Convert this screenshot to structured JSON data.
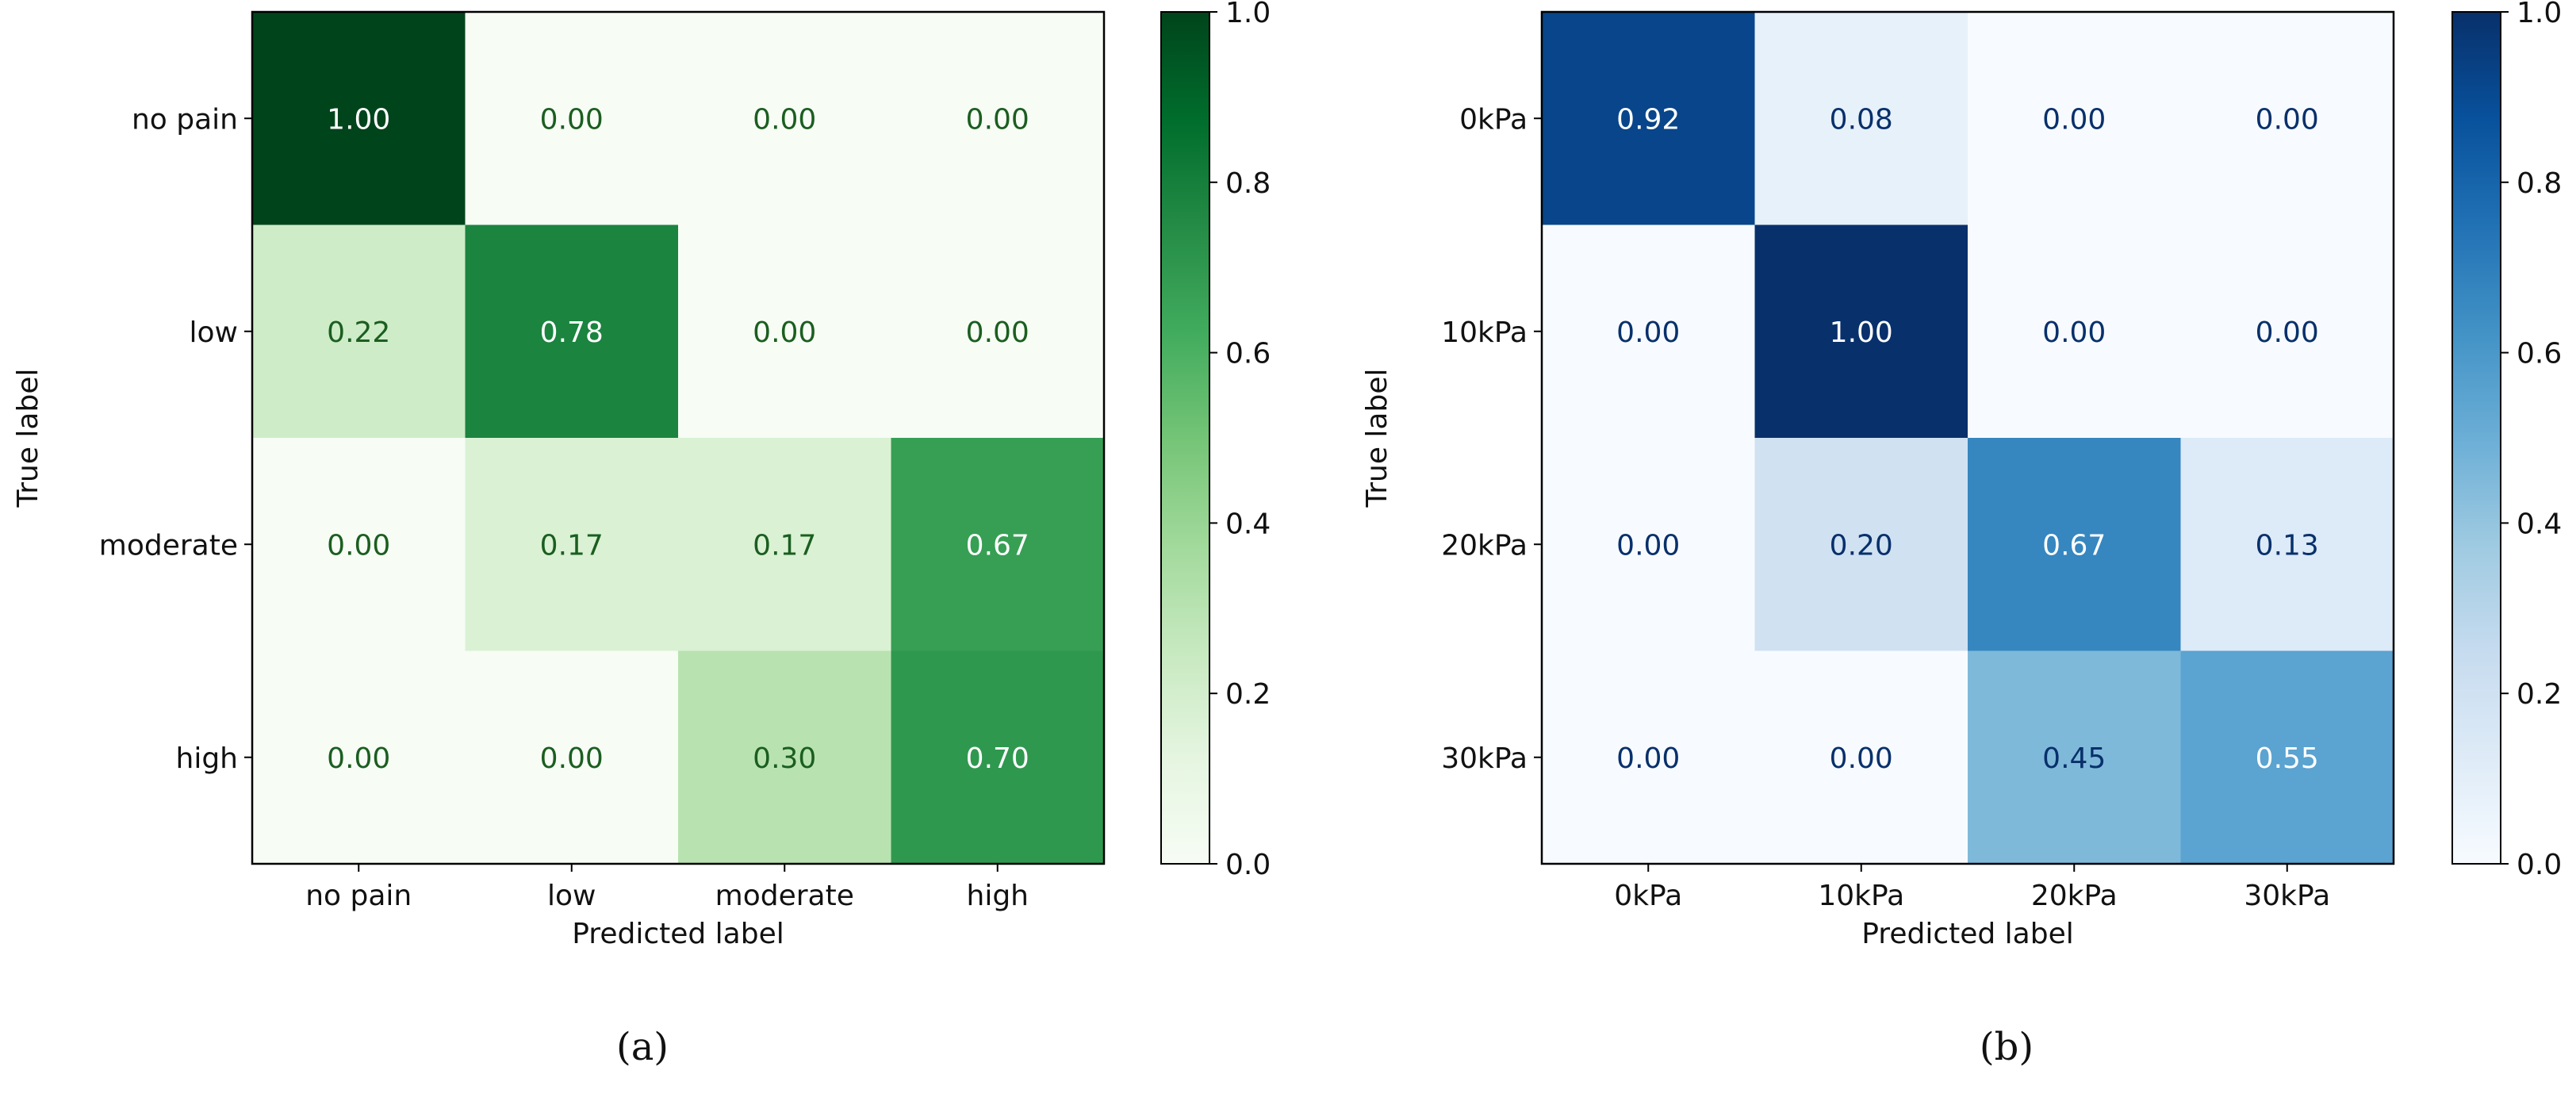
{
  "chart_data": [
    {
      "type": "heatmap",
      "title": "",
      "xlabel": "Predicted label",
      "ylabel": "True label",
      "x_categories": [
        "no pain",
        "low",
        "moderate",
        "high"
      ],
      "y_categories": [
        "no pain",
        "low",
        "moderate",
        "high"
      ],
      "values": [
        [
          1.0,
          0.0,
          0.0,
          0.0
        ],
        [
          0.22,
          0.78,
          0.0,
          0.0
        ],
        [
          0.0,
          0.17,
          0.17,
          0.67
        ],
        [
          0.0,
          0.0,
          0.3,
          0.7
        ]
      ],
      "value_format": "0.00",
      "colormap": "Greens",
      "colorbar_ticks": [
        "0.0",
        "0.2",
        "0.4",
        "0.6",
        "0.8",
        "1.0"
      ],
      "colorbar_range": [
        0,
        1
      ],
      "caption": "(a)"
    },
    {
      "type": "heatmap",
      "title": "",
      "xlabel": "Predicted label",
      "ylabel": "True label",
      "x_categories": [
        "0kPa",
        "10kPa",
        "20kPa",
        "30kPa"
      ],
      "y_categories": [
        "0kPa",
        "10kPa",
        "20kPa",
        "30kPa"
      ],
      "values": [
        [
          0.92,
          0.08,
          0.0,
          0.0
        ],
        [
          0.0,
          1.0,
          0.0,
          0.0
        ],
        [
          0.0,
          0.2,
          0.67,
          0.13
        ],
        [
          0.0,
          0.0,
          0.45,
          0.55
        ]
      ],
      "value_format": "0.00",
      "colormap": "Blues",
      "colorbar_ticks": [
        "0.0",
        "0.2",
        "0.4",
        "0.6",
        "0.8",
        "1.0"
      ],
      "colorbar_range": [
        0,
        1
      ],
      "caption": "(b)"
    }
  ],
  "colors": {
    "Greens": [
      "#f7fcf5",
      "#e5f5e0",
      "#c7e9c0",
      "#a1d99b",
      "#74c476",
      "#41ab5d",
      "#238b45",
      "#006d2c",
      "#00441b"
    ],
    "Blues": [
      "#f7fbff",
      "#deebf7",
      "#c6dbef",
      "#9ecae1",
      "#6baed6",
      "#4292c6",
      "#2171b5",
      "#08519c",
      "#08306b"
    ],
    "text_light": "#ffffff",
    "text_dark_greens": "#1b5e20",
    "text_dark_blues": "#08306b",
    "axis": "#000000"
  }
}
